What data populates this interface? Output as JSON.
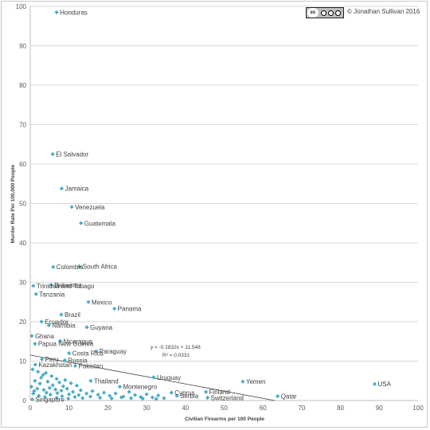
{
  "credit": "© Jonathan Sullivan 2016",
  "license_icon": "cc-by-nc-nd-icon",
  "chart_data": {
    "type": "scatter",
    "xlabel": "Civilian Firearms per 100 People",
    "ylabel": "Murder Rate Per 100,000 People",
    "xlim": [
      0,
      100
    ],
    "ylim": [
      0,
      100
    ],
    "xticks": [
      0,
      10,
      20,
      30,
      40,
      50,
      60,
      70,
      80,
      90,
      100
    ],
    "yticks": [
      0,
      10,
      20,
      30,
      40,
      50,
      60,
      70,
      80,
      90,
      100
    ],
    "gridlines": "horizontal",
    "marker_color": "#4BACC6",
    "trendline": {
      "type": "linear",
      "slope": -0.1832,
      "intercept": 11.548,
      "equation": "y = -0.1832x + 11.548",
      "r_squared": "R² = 0.0331"
    },
    "labeled_points": [
      {
        "label": "Honduras",
        "x": 6.8,
        "y": 98.5
      },
      {
        "label": "El Salvador",
        "x": 5.8,
        "y": 62.5
      },
      {
        "label": "Jamaica",
        "x": 8.1,
        "y": 53.8
      },
      {
        "label": "Venezuela",
        "x": 10.7,
        "y": 49.1
      },
      {
        "label": "Guatemala",
        "x": 13.1,
        "y": 45.0
      },
      {
        "label": "Colombia",
        "x": 5.9,
        "y": 33.9
      },
      {
        "label": "South Africa",
        "x": 12.7,
        "y": 34.0
      },
      {
        "label": "Trinidad and Tobago",
        "x": 0.8,
        "y": 29.1
      },
      {
        "label": "Bahamas",
        "x": 5.4,
        "y": 29.3
      },
      {
        "label": "Tanzania",
        "x": 1.5,
        "y": 27.0
      },
      {
        "label": "Mexico",
        "x": 15.0,
        "y": 25.0
      },
      {
        "label": "Panama",
        "x": 21.7,
        "y": 23.3
      },
      {
        "label": "Brazil",
        "x": 8.0,
        "y": 21.8
      },
      {
        "label": "Ecuador",
        "x": 2.9,
        "y": 20.0
      },
      {
        "label": "Namibia",
        "x": 4.8,
        "y": 19.1
      },
      {
        "label": "Guyana",
        "x": 14.6,
        "y": 18.6
      },
      {
        "label": "Ghana",
        "x": 0.4,
        "y": 16.4
      },
      {
        "label": "Nicaragua",
        "x": 7.7,
        "y": 15.1
      },
      {
        "label": "Papua New Guinea",
        "x": 1.2,
        "y": 14.4
      },
      {
        "label": "Paraguay",
        "x": 17.0,
        "y": 12.5
      },
      {
        "label": "Costa Rica",
        "x": 10.0,
        "y": 12.0
      },
      {
        "label": "Russia",
        "x": 8.9,
        "y": 10.2
      },
      {
        "label": "Peru",
        "x": 3.0,
        "y": 10.5
      },
      {
        "label": "Kazakhstan",
        "x": 1.3,
        "y": 9.1
      },
      {
        "label": "Pakistan",
        "x": 11.6,
        "y": 8.8
      },
      {
        "label": "Uruguay",
        "x": 31.8,
        "y": 5.9
      },
      {
        "label": "Thailand",
        "x": 15.6,
        "y": 5.0
      },
      {
        "label": "Yemen",
        "x": 54.8,
        "y": 4.8
      },
      {
        "label": "USA",
        "x": 88.8,
        "y": 4.2
      },
      {
        "label": "Montenegro",
        "x": 23.1,
        "y": 3.5
      },
      {
        "label": "Cyprus",
        "x": 36.4,
        "y": 2.0
      },
      {
        "label": "Finland",
        "x": 45.3,
        "y": 2.2
      },
      {
        "label": "Serbia",
        "x": 37.8,
        "y": 1.2
      },
      {
        "label": "Qatar",
        "x": 63.8,
        "y": 1.1
      },
      {
        "label": "Switzerland",
        "x": 45.7,
        "y": 0.7
      },
      {
        "label": "Singapore",
        "x": 0.5,
        "y": 0.3
      }
    ],
    "unlabeled_points": [
      {
        "x": 0.6,
        "y": 7.9
      },
      {
        "x": 2.0,
        "y": 7.3
      },
      {
        "x": 3.3,
        "y": 6.5
      },
      {
        "x": 4.0,
        "y": 7.0
      },
      {
        "x": 5.5,
        "y": 6.2
      },
      {
        "x": 6.8,
        "y": 5.5
      },
      {
        "x": 1.2,
        "y": 5.0
      },
      {
        "x": 2.5,
        "y": 4.3
      },
      {
        "x": 4.5,
        "y": 4.8
      },
      {
        "x": 7.5,
        "y": 4.6
      },
      {
        "x": 9.0,
        "y": 5.2
      },
      {
        "x": 10.5,
        "y": 4.4
      },
      {
        "x": 12.0,
        "y": 3.8
      },
      {
        "x": 0.3,
        "y": 3.5
      },
      {
        "x": 1.8,
        "y": 3.0
      },
      {
        "x": 3.5,
        "y": 2.7
      },
      {
        "x": 5.0,
        "y": 3.2
      },
      {
        "x": 6.5,
        "y": 2.8
      },
      {
        "x": 8.0,
        "y": 2.5
      },
      {
        "x": 9.5,
        "y": 3.0
      },
      {
        "x": 11.0,
        "y": 2.2
      },
      {
        "x": 13.0,
        "y": 2.6
      },
      {
        "x": 14.5,
        "y": 1.8
      },
      {
        "x": 16.0,
        "y": 2.4
      },
      {
        "x": 17.5,
        "y": 1.5
      },
      {
        "x": 19.0,
        "y": 2.0
      },
      {
        "x": 20.5,
        "y": 1.2
      },
      {
        "x": 22.0,
        "y": 1.8
      },
      {
        "x": 24.0,
        "y": 1.0
      },
      {
        "x": 25.5,
        "y": 2.2
      },
      {
        "x": 27.0,
        "y": 1.4
      },
      {
        "x": 28.5,
        "y": 0.9
      },
      {
        "x": 30.0,
        "y": 1.6
      },
      {
        "x": 31.5,
        "y": 0.8
      },
      {
        "x": 33.0,
        "y": 1.3
      },
      {
        "x": 34.5,
        "y": 0.6
      },
      {
        "x": 0.8,
        "y": 1.8
      },
      {
        "x": 2.2,
        "y": 1.2
      },
      {
        "x": 3.8,
        "y": 0.9
      },
      {
        "x": 5.2,
        "y": 1.5
      },
      {
        "x": 6.8,
        "y": 0.7
      },
      {
        "x": 8.2,
        "y": 1.1
      },
      {
        "x": 9.8,
        "y": 0.5
      },
      {
        "x": 11.5,
        "y": 0.9
      },
      {
        "x": 13.5,
        "y": 0.6
      },
      {
        "x": 15.5,
        "y": 1.0
      },
      {
        "x": 18.0,
        "y": 0.7
      },
      {
        "x": 21.0,
        "y": 0.5
      },
      {
        "x": 23.5,
        "y": 0.8
      },
      {
        "x": 26.0,
        "y": 0.6
      },
      {
        "x": 29.0,
        "y": 0.5
      },
      {
        "x": 32.5,
        "y": 0.4
      },
      {
        "x": 1.0,
        "y": 2.4
      },
      {
        "x": 4.2,
        "y": 2.0
      },
      {
        "x": 7.0,
        "y": 1.9
      },
      {
        "x": 10.0,
        "y": 1.6
      },
      {
        "x": 12.5,
        "y": 1.4
      },
      {
        "x": 2.8,
        "y": 5.8
      },
      {
        "x": 5.8,
        "y": 3.9
      },
      {
        "x": 8.5,
        "y": 3.6
      }
    ]
  }
}
